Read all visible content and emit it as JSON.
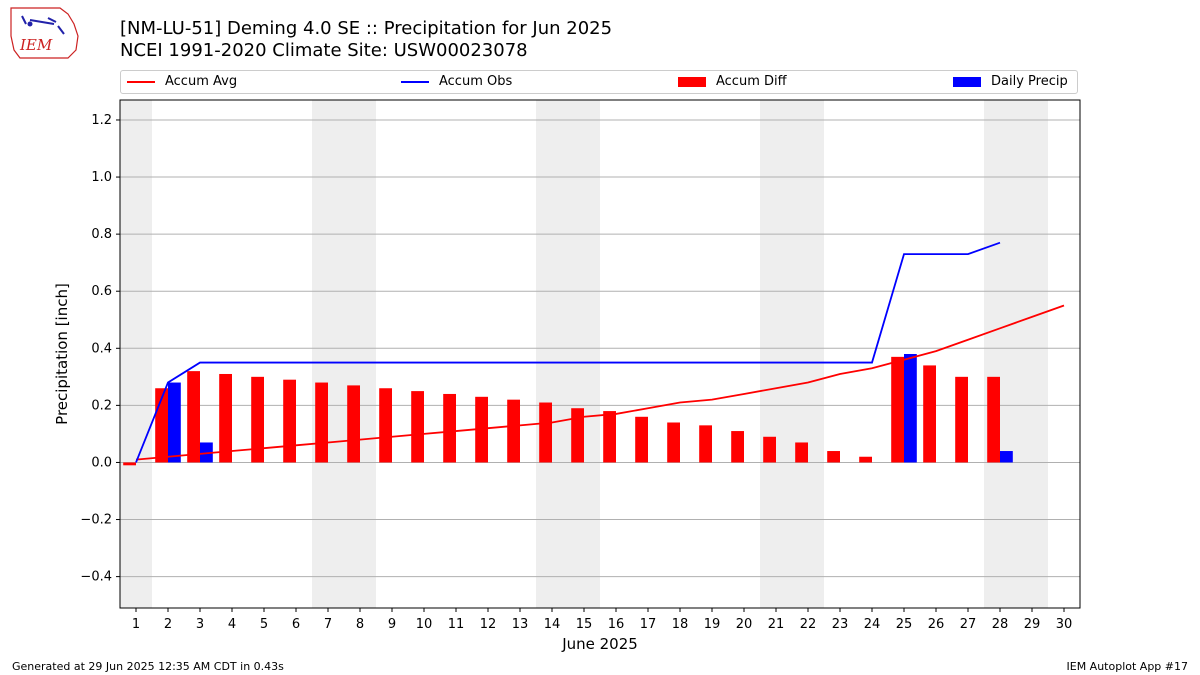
{
  "logo": {
    "text": "IEM"
  },
  "header": {
    "title_line1": "[NM-LU-51] Deming 4.0 SE :: Precipitation for Jun 2025",
    "title_line2": "NCEI 1991-2020 Climate Site: USW00023078"
  },
  "legend": {
    "accum_avg": "Accum Avg",
    "accum_obs": "Accum Obs",
    "accum_diff": "Accum Diff",
    "daily_precip": "Daily Precip"
  },
  "footer": {
    "generated": "Generated at 29 Jun 2025 12:35 AM CDT in 0.43s",
    "app": "IEM Autoplot App #17"
  },
  "colors": {
    "accum_avg": "#ff0000",
    "accum_obs": "#0000ff",
    "accum_diff": "#ff0000",
    "daily_precip": "#0000ff",
    "weekend_shade": "#eeeeee",
    "grid": "#b0b0b0"
  },
  "chart_data": {
    "type": "bar",
    "xlabel": "June 2025",
    "ylabel": "Precipitation [inch]",
    "xlim": [
      0.5,
      30.5
    ],
    "ylim": [
      -0.51,
      1.27
    ],
    "yticks": [
      -0.4,
      -0.2,
      0.0,
      0.2,
      0.4,
      0.6,
      0.8,
      1.0,
      1.2
    ],
    "ytick_labels": [
      "−0.4",
      "−0.2",
      "0.0",
      "0.2",
      "0.4",
      "0.6",
      "0.8",
      "1.0",
      "1.2"
    ],
    "x": [
      1,
      2,
      3,
      4,
      5,
      6,
      7,
      8,
      9,
      10,
      11,
      12,
      13,
      14,
      15,
      16,
      17,
      18,
      19,
      20,
      21,
      22,
      23,
      24,
      25,
      26,
      27,
      28,
      29,
      30
    ],
    "grid": "y-axis",
    "legend_position": "top",
    "weekend_days": [
      1,
      7,
      8,
      14,
      15,
      21,
      22,
      28,
      29
    ],
    "series": [
      {
        "name": "Accum Avg",
        "kind": "line",
        "x": [
          1,
          2,
          3,
          4,
          5,
          6,
          7,
          8,
          9,
          10,
          11,
          12,
          13,
          14,
          15,
          16,
          17,
          18,
          19,
          20,
          21,
          22,
          23,
          24,
          25,
          26,
          27,
          28,
          29,
          30
        ],
        "values": [
          0.01,
          0.02,
          0.03,
          0.04,
          0.05,
          0.06,
          0.07,
          0.08,
          0.09,
          0.1,
          0.11,
          0.12,
          0.13,
          0.14,
          0.16,
          0.17,
          0.19,
          0.21,
          0.22,
          0.24,
          0.26,
          0.28,
          0.31,
          0.33,
          0.36,
          0.39,
          0.43,
          0.47,
          0.51,
          0.55
        ]
      },
      {
        "name": "Accum Obs",
        "kind": "line",
        "x": [
          1,
          2,
          3,
          4,
          5,
          6,
          7,
          8,
          9,
          10,
          11,
          12,
          13,
          14,
          15,
          16,
          17,
          18,
          19,
          20,
          21,
          22,
          23,
          24,
          25,
          26,
          27,
          28
        ],
        "values": [
          0.0,
          0.28,
          0.35,
          0.35,
          0.35,
          0.35,
          0.35,
          0.35,
          0.35,
          0.35,
          0.35,
          0.35,
          0.35,
          0.35,
          0.35,
          0.35,
          0.35,
          0.35,
          0.35,
          0.35,
          0.35,
          0.35,
          0.35,
          0.35,
          0.73,
          0.73,
          0.73,
          0.77
        ]
      },
      {
        "name": "Accum Diff",
        "kind": "bar",
        "x": [
          1,
          2,
          3,
          4,
          5,
          6,
          7,
          8,
          9,
          10,
          11,
          12,
          13,
          14,
          15,
          16,
          17,
          18,
          19,
          20,
          21,
          22,
          23,
          24,
          25,
          26,
          27,
          28
        ],
        "values": [
          -0.01,
          0.26,
          0.32,
          0.31,
          0.3,
          0.29,
          0.28,
          0.27,
          0.26,
          0.25,
          0.24,
          0.23,
          0.22,
          0.21,
          0.19,
          0.18,
          0.16,
          0.14,
          0.13,
          0.11,
          0.09,
          0.07,
          0.04,
          0.02,
          0.37,
          0.34,
          0.3,
          0.3
        ]
      },
      {
        "name": "Daily Precip",
        "kind": "bar",
        "x": [
          2,
          3,
          25,
          28
        ],
        "values": [
          0.28,
          0.07,
          0.38,
          0.04
        ]
      }
    ]
  }
}
